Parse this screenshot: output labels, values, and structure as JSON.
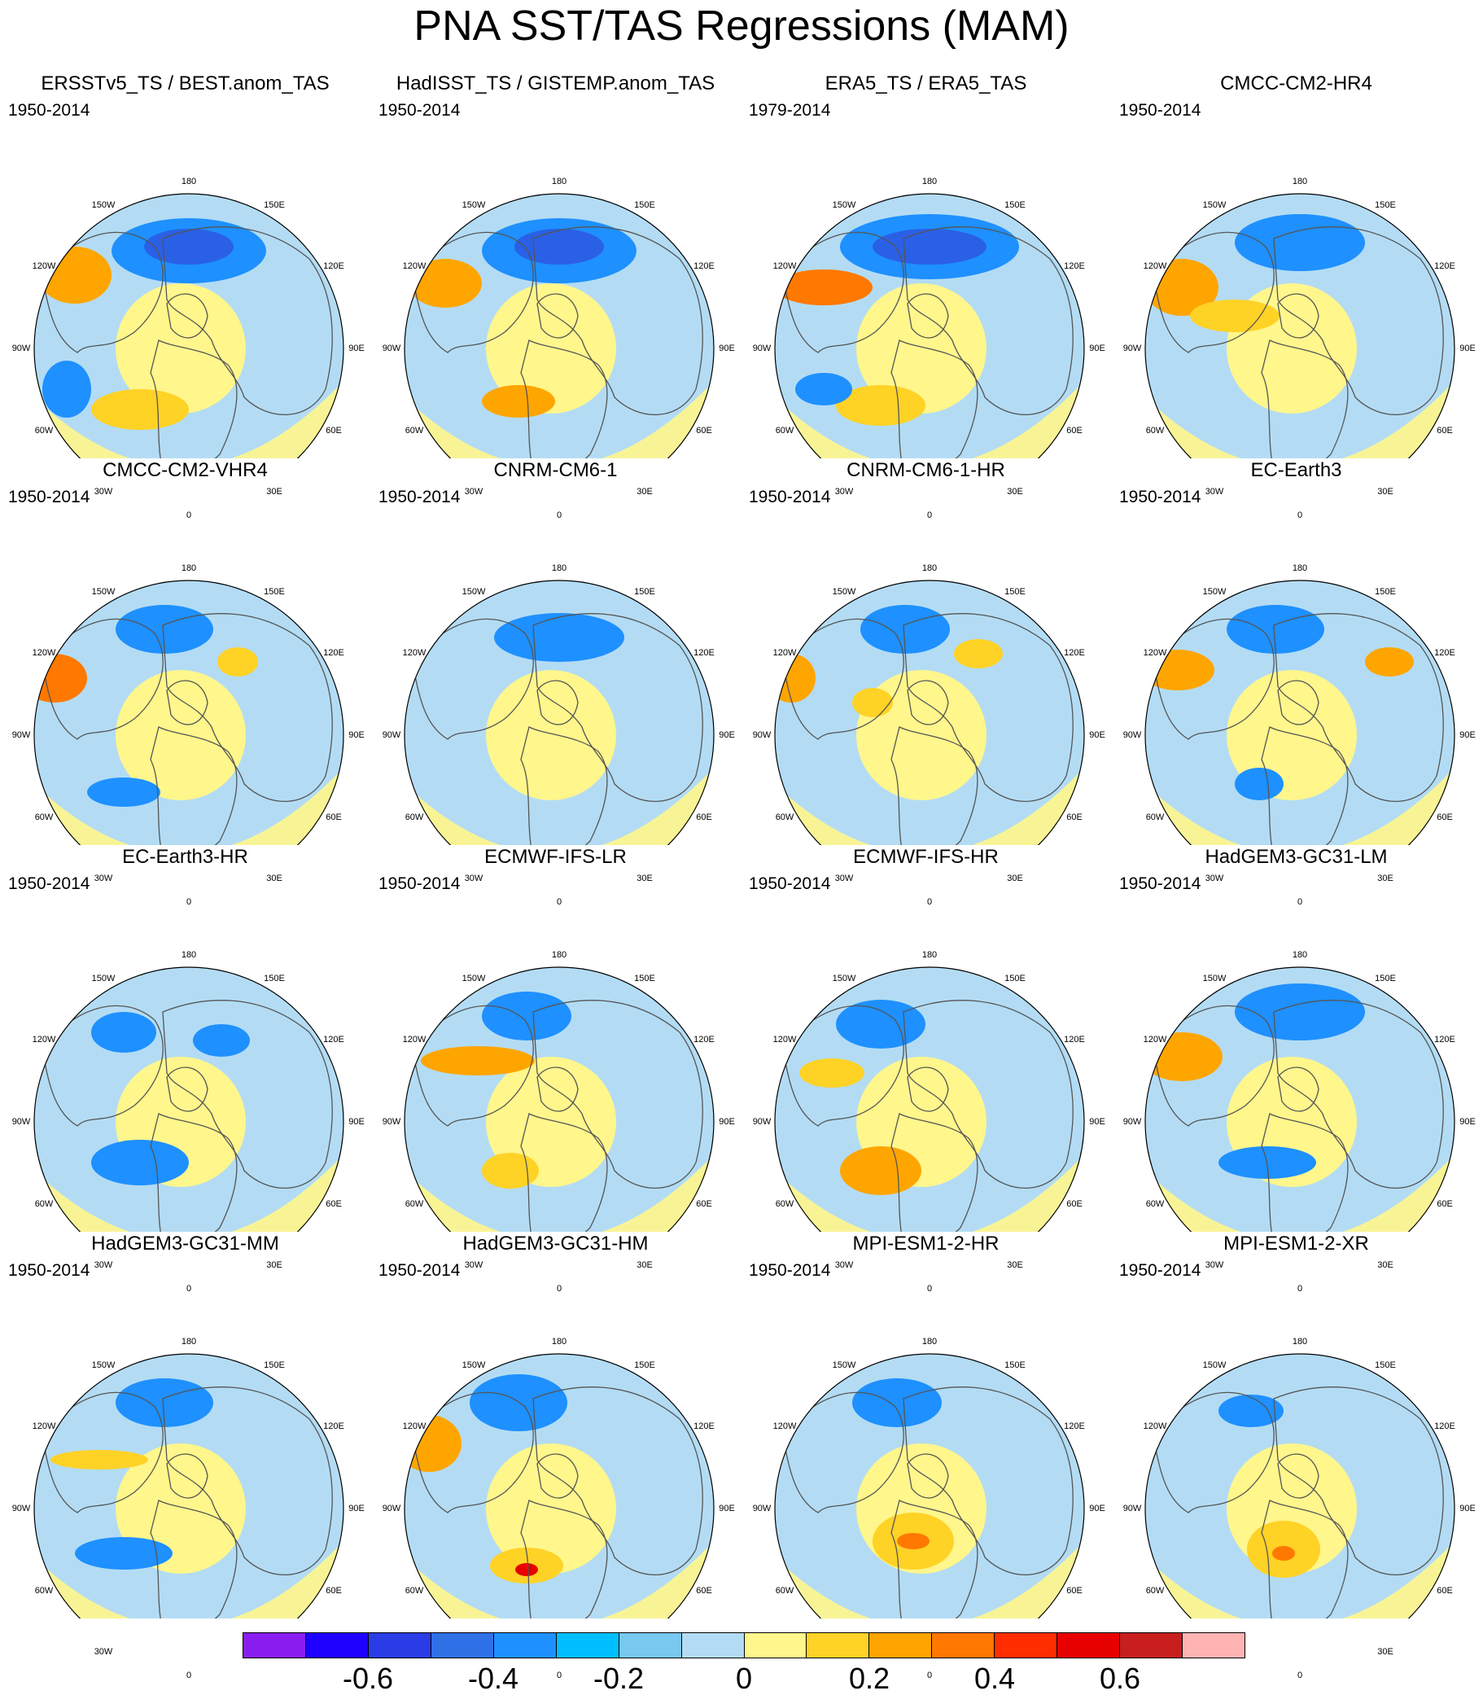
{
  "title": "PNA SST/TAS Regressions (MAM)",
  "colors": {
    "land_outline": "#555555",
    "ocean_dark_blue": "#2a60e6",
    "ocean_mid_blue": "#1e90ff",
    "ocean_light_blue": "#b3dcf4",
    "yellow": "#fff68c",
    "gold": "#ffd226",
    "orange": "#ffa500",
    "dark_orange": "#ff7800",
    "red": "#e60000"
  },
  "longitude_labels": {
    "top": "180",
    "upper_left": "150W",
    "upper_right": "150E",
    "mid_upper_left": "120W",
    "mid_upper_right": "120E",
    "left": "90W",
    "right": "90E",
    "mid_lower_left": "60W",
    "mid_lower_right": "60E",
    "lower_left": "30W",
    "lower_right": "30E",
    "bottom": "0"
  },
  "panels": [
    {
      "title": "ERSSTv5_TS / BEST.anom_TAS",
      "period": "1950-2014"
    },
    {
      "title": "HadISST_TS / GISTEMP.anom_TAS",
      "period": "1950-2014"
    },
    {
      "title": "ERA5_TS / ERA5_TAS",
      "period": "1979-2014"
    },
    {
      "title": "CMCC-CM2-HR4",
      "period": "1950-2014"
    },
    {
      "title": "CMCC-CM2-VHR4",
      "period": "1950-2014"
    },
    {
      "title": "CNRM-CM6-1",
      "period": "1950-2014"
    },
    {
      "title": "CNRM-CM6-1-HR",
      "period": "1950-2014"
    },
    {
      "title": "EC-Earth3",
      "period": "1950-2014"
    },
    {
      "title": "EC-Earth3-HR",
      "period": "1950-2014"
    },
    {
      "title": "ECMWF-IFS-LR",
      "period": "1950-2014"
    },
    {
      "title": "ECMWF-IFS-HR",
      "period": "1950-2014"
    },
    {
      "title": "HadGEM3-GC31-LM",
      "period": "1950-2014"
    },
    {
      "title": "HadGEM3-GC31-MM",
      "period": "1950-2014"
    },
    {
      "title": "HadGEM3-GC31-HM",
      "period": "1950-2014"
    },
    {
      "title": "MPI-ESM1-2-HR",
      "period": "1950-2014"
    },
    {
      "title": "MPI-ESM1-2-XR",
      "period": "1950-2014"
    }
  ],
  "colorbar": {
    "colors": [
      "#8a1ef0",
      "#1e00ff",
      "#2a3ce6",
      "#3070e6",
      "#1e90ff",
      "#00bfff",
      "#78c8f0",
      "#b3dcf4",
      "#fff68c",
      "#ffd226",
      "#ffa500",
      "#ff7800",
      "#ff2d00",
      "#e60000",
      "#c81e1e",
      "#ffb4b4"
    ],
    "labels": [
      "-0.6",
      "-0.4",
      "-0.2",
      "0",
      "0.2",
      "0.4",
      "0.6"
    ],
    "label_box_boundaries": [
      2,
      4,
      6,
      8,
      10,
      12,
      14
    ]
  }
}
